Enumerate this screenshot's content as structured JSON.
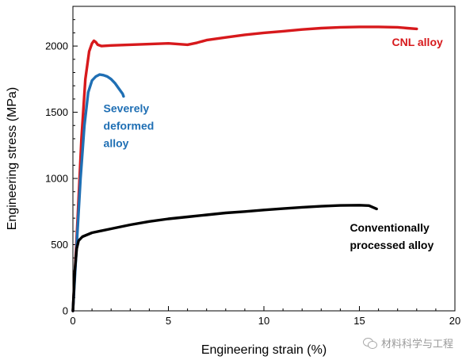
{
  "chart_data": {
    "type": "line",
    "title": "",
    "xlabel": "Engineering strain  (%)",
    "ylabel": "Engineering stress (MPa)",
    "xlim": [
      0,
      20
    ],
    "ylim": [
      0,
      2300
    ],
    "xticks": [
      0,
      5,
      10,
      15,
      20
    ],
    "yticks": [
      0,
      500,
      1000,
      1500,
      2000
    ],
    "grid": false,
    "legend": "none",
    "series": [
      {
        "name": "CNL alloy",
        "color": "#d7191c",
        "x": [
          0,
          0.25,
          0.45,
          0.65,
          0.85,
          1.0,
          1.1,
          1.2,
          1.3,
          1.5,
          2,
          3,
          4,
          5,
          5.5,
          6,
          6.5,
          7,
          8,
          9,
          10,
          11,
          12,
          13,
          14,
          15,
          16,
          17,
          17.5,
          18
        ],
        "y": [
          0,
          700,
          1300,
          1750,
          1960,
          2020,
          2040,
          2030,
          2010,
          2000,
          2005,
          2010,
          2015,
          2020,
          2015,
          2010,
          2025,
          2045,
          2065,
          2085,
          2100,
          2112,
          2125,
          2135,
          2142,
          2145,
          2145,
          2142,
          2135,
          2130
        ]
      },
      {
        "name": "Severely deformed alloy",
        "color": "#1f6fb4",
        "x": [
          0,
          0.2,
          0.4,
          0.6,
          0.8,
          1.0,
          1.2,
          1.4,
          1.6,
          1.8,
          2.0,
          2.2,
          2.4,
          2.6,
          2.65
        ],
        "y": [
          0,
          500,
          1000,
          1400,
          1650,
          1740,
          1770,
          1785,
          1780,
          1770,
          1750,
          1720,
          1680,
          1640,
          1620
        ]
      },
      {
        "name": "Conventionally processed alloy",
        "color": "#000000",
        "x": [
          0,
          0.1,
          0.2,
          0.3,
          0.5,
          1,
          2,
          3,
          4,
          5,
          6,
          7,
          8,
          9,
          10,
          11,
          12,
          13,
          14,
          15,
          15.5,
          15.9
        ],
        "y": [
          0,
          300,
          470,
          530,
          560,
          590,
          620,
          650,
          675,
          695,
          710,
          725,
          740,
          750,
          762,
          772,
          782,
          790,
          796,
          798,
          795,
          770
        ]
      }
    ],
    "annotations": [
      {
        "lines": [
          "CNL alloy"
        ],
        "x": 16.7,
        "y": 2000,
        "color": "#d7191c"
      },
      {
        "lines": [
          "Severely",
          "deformed",
          "alloy"
        ],
        "x": 1.6,
        "y": 1500,
        "color": "#1f6fb4"
      },
      {
        "lines": [
          "Conventionally",
          "processed alloy"
        ],
        "x": 14.5,
        "y": 600,
        "color": "#000000"
      }
    ]
  },
  "watermark": {
    "icon": "wechat-icon",
    "text": "材料科学与工程"
  }
}
